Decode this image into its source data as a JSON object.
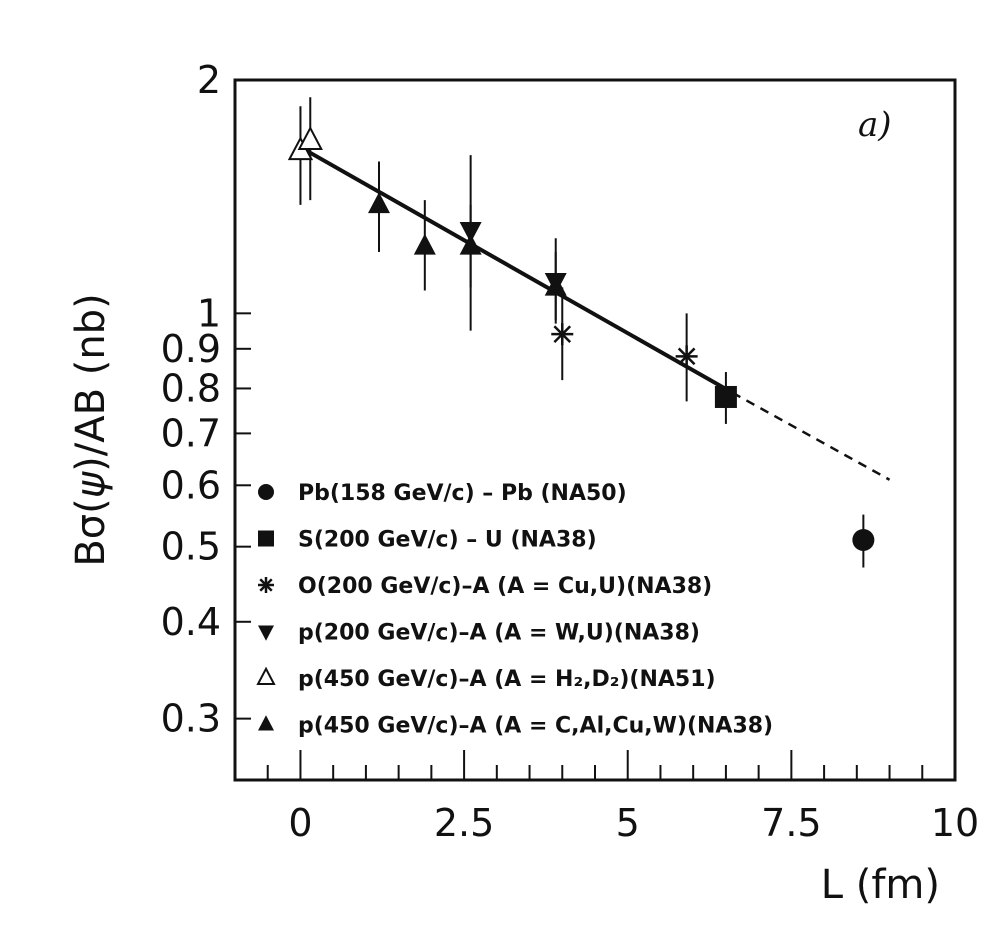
{
  "chart_data": {
    "type": "scatter",
    "panel_label": "a)",
    "xlabel": "L (fm)",
    "ylabel": "Bσ(ψ)/AB (nb)",
    "ylabel_parts": {
      "pre": "Bσ(",
      "psi": "ψ",
      "post": ")/AB (nb)"
    },
    "xlim": [
      -1,
      10
    ],
    "ylim": [
      0.25,
      2
    ],
    "yscale": "log",
    "xticks": [
      0,
      2.5,
      5,
      7.5,
      10
    ],
    "xtick_labels": [
      "0",
      "2.5",
      "5",
      "7.5",
      "10"
    ],
    "yticks": [
      0.3,
      0.4,
      0.5,
      0.6,
      0.7,
      0.8,
      0.9,
      1,
      2
    ],
    "ytick_labels": [
      "0.3",
      "0.4",
      "0.5",
      "0.6",
      "0.7",
      "0.8",
      "0.9",
      "1",
      "2"
    ],
    "series": [
      {
        "name": "Pb(158 GeV/c) – Pb (NA50)",
        "marker": "circle",
        "points": [
          {
            "x": 8.6,
            "y": 0.51,
            "lo": 0.47,
            "hi": 0.55
          }
        ]
      },
      {
        "name": "S(200 GeV/c) – U (NA38)",
        "marker": "square",
        "points": [
          {
            "x": 6.5,
            "y": 0.78,
            "lo": 0.72,
            "hi": 0.84
          }
        ]
      },
      {
        "name": "O(200 GeV/c)–A (A = Cu,U)(NA38)",
        "marker": "asterisk",
        "points": [
          {
            "x": 4.0,
            "y": 0.94,
            "lo": 0.82,
            "hi": 1.08
          },
          {
            "x": 5.9,
            "y": 0.88,
            "lo": 0.77,
            "hi": 1.0
          }
        ]
      },
      {
        "name": "p(200 GeV/c)–A (A = W,U)(NA38)",
        "marker": "triangle-down",
        "points": [
          {
            "x": 2.6,
            "y": 1.28,
            "lo": 0.95,
            "hi": 1.6
          },
          {
            "x": 3.9,
            "y": 1.1,
            "lo": 0.98,
            "hi": 1.25
          }
        ]
      },
      {
        "name": "p(450 GeV/c)–A (A = H₂,D₂)(NA51)",
        "marker": "triangle-open",
        "points": [
          {
            "x": 0.0,
            "y": 1.62,
            "lo": 1.38,
            "hi": 1.85
          },
          {
            "x": 0.15,
            "y": 1.67,
            "lo": 1.4,
            "hi": 1.9
          }
        ]
      },
      {
        "name": "p(450 GeV/c)–A (A = C,Al,Cu,W)(NA38)",
        "marker": "triangle-up",
        "points": [
          {
            "x": 1.2,
            "y": 1.38,
            "lo": 1.2,
            "hi": 1.57
          },
          {
            "x": 1.9,
            "y": 1.22,
            "lo": 1.07,
            "hi": 1.4
          },
          {
            "x": 2.6,
            "y": 1.22,
            "lo": 1.08,
            "hi": 1.38
          },
          {
            "x": 3.9,
            "y": 1.08,
            "lo": 0.97,
            "hi": 1.2
          }
        ]
      }
    ],
    "fit_line": {
      "x_start": 0.1,
      "y_start": 1.62,
      "x_end": 6.6,
      "y_end": 0.79
    },
    "extrapolation": {
      "x_start": 6.6,
      "y_start": 0.79,
      "x_end": 9.0,
      "y_end": 0.61
    }
  }
}
